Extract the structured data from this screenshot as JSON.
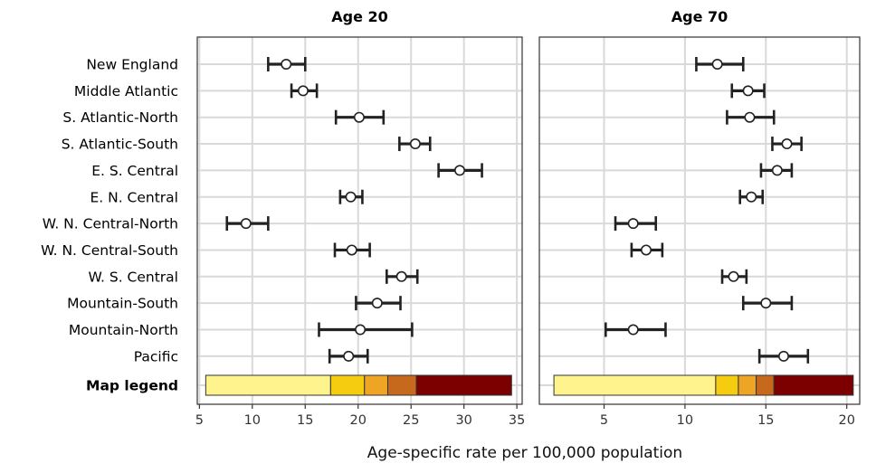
{
  "chart_data": {
    "type": "dot-interval",
    "xlabel": "Age-specific rate per 100,000 population",
    "categories": [
      "New England",
      "Middle Atlantic",
      "S. Atlantic-North",
      "S. Atlantic-South",
      "E. S. Central",
      "E. N. Central",
      "W. N. Central-North",
      "W. N. Central-South",
      "W. S. Central",
      "Mountain-South",
      "Mountain-North",
      "Pacific"
    ],
    "legend_row_label": "Map legend",
    "panels": [
      {
        "title": "Age 20",
        "xlim": [
          4.8,
          35.5
        ],
        "ticks": [
          5,
          10,
          15,
          20,
          25,
          30,
          35
        ],
        "series": [
          {
            "est": 13.2,
            "lo": 11.5,
            "hi": 15.0
          },
          {
            "est": 14.8,
            "lo": 13.7,
            "hi": 16.1
          },
          {
            "est": 20.1,
            "lo": 17.9,
            "hi": 22.4
          },
          {
            "est": 25.4,
            "lo": 23.9,
            "hi": 26.8
          },
          {
            "est": 29.6,
            "lo": 27.6,
            "hi": 31.7
          },
          {
            "est": 19.3,
            "lo": 18.3,
            "hi": 20.4
          },
          {
            "est": 9.4,
            "lo": 7.6,
            "hi": 11.5
          },
          {
            "est": 19.4,
            "lo": 17.8,
            "hi": 21.1
          },
          {
            "est": 24.1,
            "lo": 22.7,
            "hi": 25.6
          },
          {
            "est": 21.8,
            "lo": 19.8,
            "hi": 24.0
          },
          {
            "est": 20.2,
            "lo": 16.3,
            "hi": 25.1
          },
          {
            "est": 19.1,
            "lo": 17.3,
            "hi": 20.9
          }
        ],
        "legend_breaks": [
          5.6,
          17.4,
          20.6,
          22.8,
          25.5,
          34.5
        ],
        "legend_colors": [
          "#fff38e",
          "#f5cc10",
          "#eea526",
          "#c7691d",
          "#7c0000"
        ]
      },
      {
        "title": "Age 70",
        "xlim": [
          1.0,
          20.8
        ],
        "ticks": [
          5,
          10,
          15,
          20
        ],
        "series": [
          {
            "est": 12.0,
            "lo": 10.7,
            "hi": 13.6
          },
          {
            "est": 13.9,
            "lo": 12.9,
            "hi": 14.9
          },
          {
            "est": 14.0,
            "lo": 12.6,
            "hi": 15.5
          },
          {
            "est": 16.3,
            "lo": 15.4,
            "hi": 17.2
          },
          {
            "est": 15.7,
            "lo": 14.7,
            "hi": 16.6
          },
          {
            "est": 14.1,
            "lo": 13.4,
            "hi": 14.8
          },
          {
            "est": 6.8,
            "lo": 5.7,
            "hi": 8.2
          },
          {
            "est": 7.6,
            "lo": 6.7,
            "hi": 8.6
          },
          {
            "est": 13.0,
            "lo": 12.3,
            "hi": 13.8
          },
          {
            "est": 15.0,
            "lo": 13.6,
            "hi": 16.6
          },
          {
            "est": 6.8,
            "lo": 5.1,
            "hi": 8.8
          },
          {
            "est": 16.1,
            "lo": 14.6,
            "hi": 17.6
          }
        ],
        "legend_breaks": [
          1.9,
          11.9,
          13.3,
          14.4,
          15.5,
          20.4
        ],
        "legend_colors": [
          "#fff38e",
          "#f5cc10",
          "#eea526",
          "#c7691d",
          "#7c0000"
        ]
      }
    ]
  }
}
